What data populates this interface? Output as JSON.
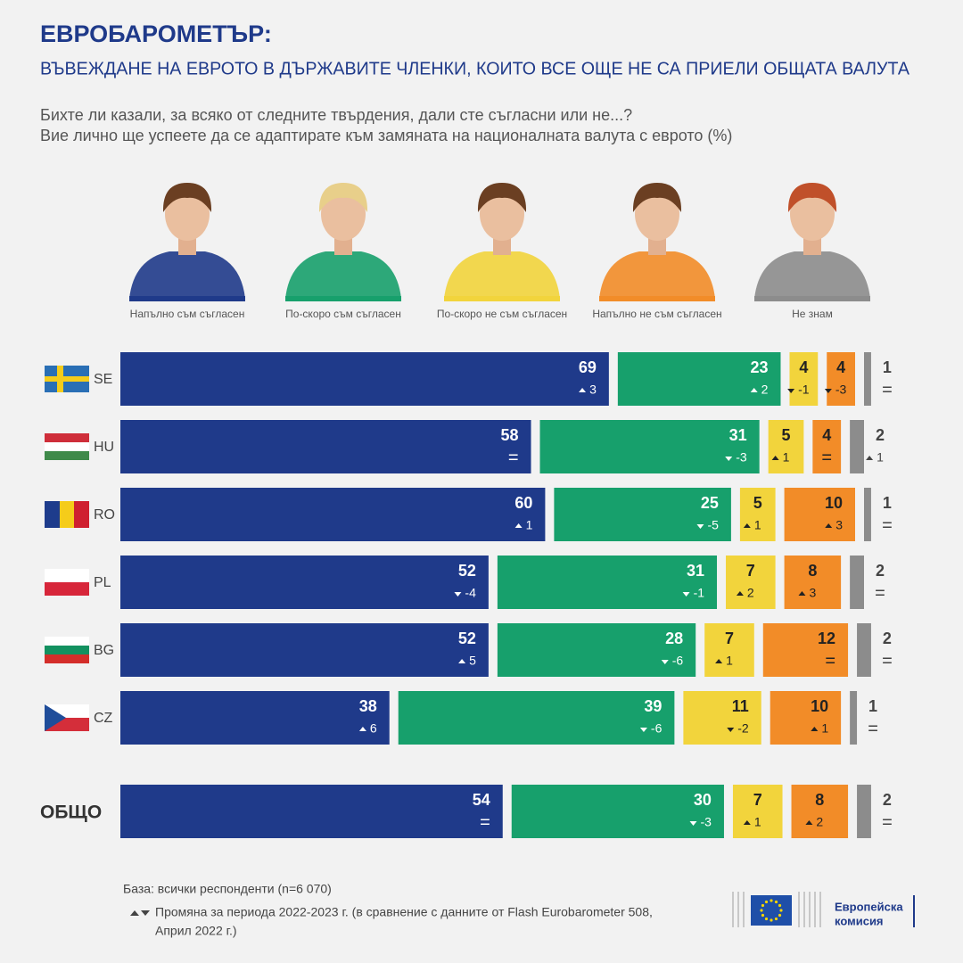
{
  "header": {
    "title": "ЕВРОБАРОМЕТЪР:",
    "subtitle": "ВЪВЕЖДАНЕ НА ЕВРОТО В ДЪРЖАВИТЕ ЧЛЕНКИ, КОИТО ВСЕ ОЩЕ НЕ СА ПРИЕЛИ ОБЩАТА ВАЛУТА",
    "question": [
      "Бихте ли казали, за всяко от следните твърдения, дали сте съгласни или не...?",
      "Вие лично ще успеете да се адаптирате към замяната на националната валута с еврото (%)"
    ]
  },
  "chart_data": {
    "type": "stacked-bar-horizontal",
    "categories": [
      "SE",
      "HU",
      "RO",
      "PL",
      "BG",
      "CZ",
      "ОБЩО"
    ],
    "series": [
      {
        "name": "Напълно съм съгласен",
        "color": "#1f3a8a",
        "values": [
          69,
          58,
          60,
          52,
          52,
          38,
          54
        ],
        "changes": [
          3,
          {
            "value": 0,
            "label": "="
          },
          1,
          -4,
          5,
          6,
          {
            "value": 0,
            "label": "="
          }
        ]
      },
      {
        "name": "По-скоро съм съгласен",
        "color": "#17a06c",
        "values": [
          23,
          31,
          25,
          31,
          28,
          39,
          30
        ],
        "changes": [
          2,
          -3,
          -5,
          -1,
          -6,
          -6,
          -3
        ]
      },
      {
        "name": "По-скоро не съм съгласен",
        "color": "#f2d43c",
        "values": [
          4,
          5,
          5,
          7,
          7,
          11,
          7
        ],
        "changes": [
          -1,
          1,
          1,
          2,
          1,
          -2,
          1
        ]
      },
      {
        "name": "Напълно не съм съгласен",
        "color": "#f28c28",
        "values": [
          4,
          4,
          10,
          8,
          12,
          10,
          8
        ],
        "changes": [
          -3,
          {
            "value": 0,
            "label": "="
          },
          3,
          3,
          {
            "value": 0,
            "label": "="
          },
          1,
          2
        ]
      },
      {
        "name": "Не знам",
        "color": "#8c8c8c",
        "values": [
          1,
          2,
          1,
          2,
          2,
          1,
          2
        ],
        "changes": [
          {
            "value": 0,
            "label": "="
          },
          1,
          {
            "value": 0,
            "label": "="
          },
          {
            "value": 0,
            "label": "="
          },
          {
            "value": 0,
            "label": "="
          },
          {
            "value": 0,
            "label": "="
          },
          {
            "value": 0,
            "label": "="
          }
        ]
      }
    ]
  },
  "footer": {
    "base": "База: всички респонденти (n=6 070)",
    "note": [
      "Промяна за периода 2022-2023 г. (в сравнение с данните от Flash Eurobarometer 508,",
      "Април 2022 г.)"
    ],
    "logo": [
      "Европейска",
      "комисия"
    ]
  }
}
